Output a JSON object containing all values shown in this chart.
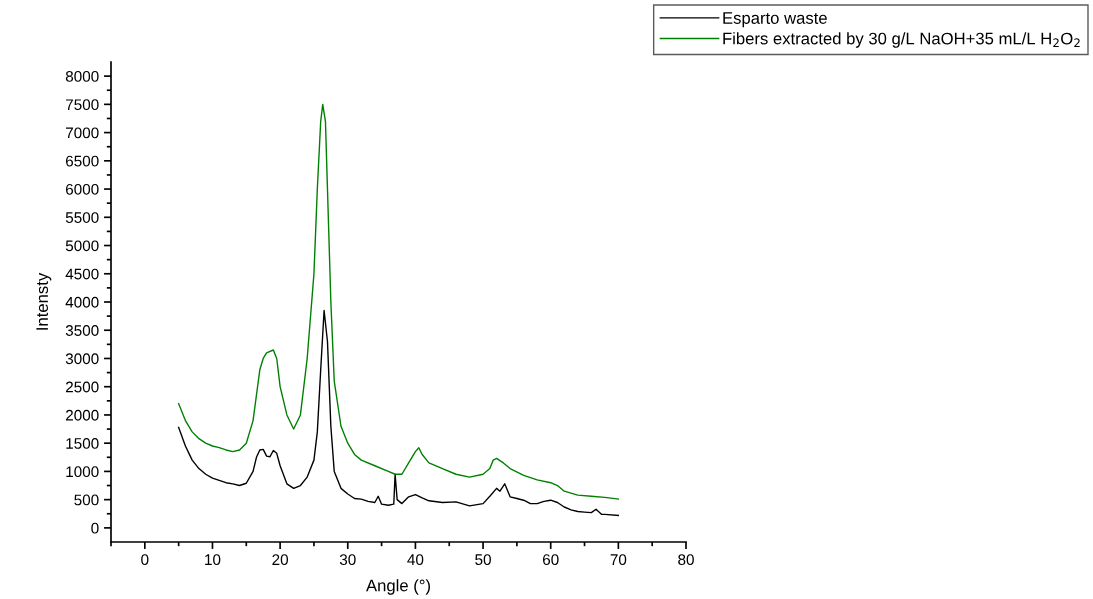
{
  "chart_data": {
    "type": "line",
    "xlabel": "Angle (°)",
    "ylabel": "Intensty",
    "xlim": [
      -5,
      80
    ],
    "ylim": [
      -250,
      8250
    ],
    "xticks": [
      {
        "value": -5,
        "label": null
      },
      0,
      {
        "value": 5,
        "label": null
      },
      10,
      {
        "value": 15,
        "label": null
      },
      20,
      {
        "value": 25,
        "label": null
      },
      30,
      {
        "value": 35,
        "label": null
      },
      40,
      {
        "value": 45,
        "label": null
      },
      50,
      {
        "value": 55,
        "label": null
      },
      60,
      {
        "value": 65,
        "label": null
      },
      70,
      {
        "value": 75,
        "label": null
      },
      80
    ],
    "yticks": [
      0,
      {
        "value": 250,
        "label": null
      },
      500,
      {
        "value": 750,
        "label": null
      },
      1000,
      {
        "value": 1250,
        "label": null
      },
      1500,
      {
        "value": 1750,
        "label": null
      },
      2000,
      {
        "value": 2250,
        "label": null
      },
      2500,
      {
        "value": 2750,
        "label": null
      },
      3000,
      {
        "value": 3250,
        "label": null
      },
      3500,
      {
        "value": 3750,
        "label": null
      },
      4000,
      {
        "value": 4250,
        "label": null
      },
      4500,
      {
        "value": 4750,
        "label": null
      },
      5000,
      {
        "value": 5250,
        "label": null
      },
      5500,
      {
        "value": 5750,
        "label": null
      },
      6000,
      {
        "value": 6250,
        "label": null
      },
      6500,
      {
        "value": 6750,
        "label": null
      },
      7000,
      {
        "value": 7250,
        "label": null
      },
      7500,
      {
        "value": 7750,
        "label": null
      },
      8000
    ],
    "grid": false,
    "legend": "top right",
    "marker": "none",
    "line_style": "solid",
    "series": [
      {
        "name": "Esparto waste",
        "color": "#000000",
        "x": [
          5,
          6,
          7,
          8,
          9,
          10,
          11,
          12,
          13,
          14,
          15,
          16,
          16.5,
          17,
          17.5,
          18,
          18.5,
          19,
          19.5,
          20,
          21,
          22,
          23,
          24,
          25,
          25.5,
          26,
          26.5,
          27,
          27.5,
          28,
          29,
          30,
          31,
          32,
          33,
          34,
          34.5,
          35,
          36,
          36.8,
          37,
          37.3,
          38,
          39,
          40,
          41,
          42,
          44,
          46,
          48,
          50,
          51,
          52,
          52.5,
          53.2,
          54,
          55,
          56,
          57,
          58,
          59,
          60,
          61,
          62,
          63,
          64,
          65,
          66,
          66.7,
          67.5,
          68,
          70
        ],
        "values": [
          1780,
          1450,
          1200,
          1050,
          950,
          880,
          840,
          800,
          780,
          750,
          790,
          1000,
          1250,
          1380,
          1390,
          1270,
          1260,
          1370,
          1320,
          1100,
          780,
          700,
          750,
          900,
          1200,
          1700,
          2800,
          3850,
          3300,
          1800,
          1000,
          700,
          600,
          520,
          510,
          470,
          450,
          560,
          420,
          400,
          420,
          950,
          500,
          430,
          550,
          590,
          530,
          480,
          450,
          460,
          390,
          430,
          560,
          700,
          650,
          780,
          550,
          520,
          490,
          430,
          430,
          470,
          490,
          450,
          370,
          320,
          290,
          280,
          270,
          330,
          240,
          240,
          220
        ]
      },
      {
        "name": "Fibers extracted by 30 g/L NaOH+35 mL/L H$_{2}$O$_{2}$",
        "color": "#008000",
        "x": [
          5,
          6,
          7,
          8,
          9,
          10,
          11,
          12,
          13,
          14,
          15,
          16,
          17,
          17.5,
          18,
          19,
          19.5,
          20,
          21,
          22,
          23,
          24,
          25,
          25.5,
          26,
          26.3,
          26.7,
          27,
          27.5,
          28,
          29,
          30,
          31,
          32,
          34,
          36,
          37,
          38,
          39,
          40,
          40.5,
          41,
          42,
          44,
          46,
          48,
          50,
          51,
          51.5,
          52,
          53,
          54,
          56,
          58,
          60,
          61,
          62,
          64,
          66,
          68,
          70
        ],
        "values": [
          2200,
          1900,
          1700,
          1580,
          1500,
          1450,
          1420,
          1380,
          1350,
          1380,
          1500,
          1900,
          2800,
          3000,
          3100,
          3150,
          3000,
          2500,
          2000,
          1750,
          2000,
          3000,
          4500,
          6000,
          7200,
          7500,
          7200,
          6000,
          4000,
          2600,
          1800,
          1500,
          1300,
          1200,
          1100,
          1000,
          950,
          950,
          1150,
          1350,
          1420,
          1300,
          1150,
          1050,
          950,
          900,
          950,
          1050,
          1200,
          1230,
          1150,
          1050,
          930,
          850,
          800,
          750,
          650,
          580,
          560,
          540,
          510
        ]
      }
    ]
  }
}
